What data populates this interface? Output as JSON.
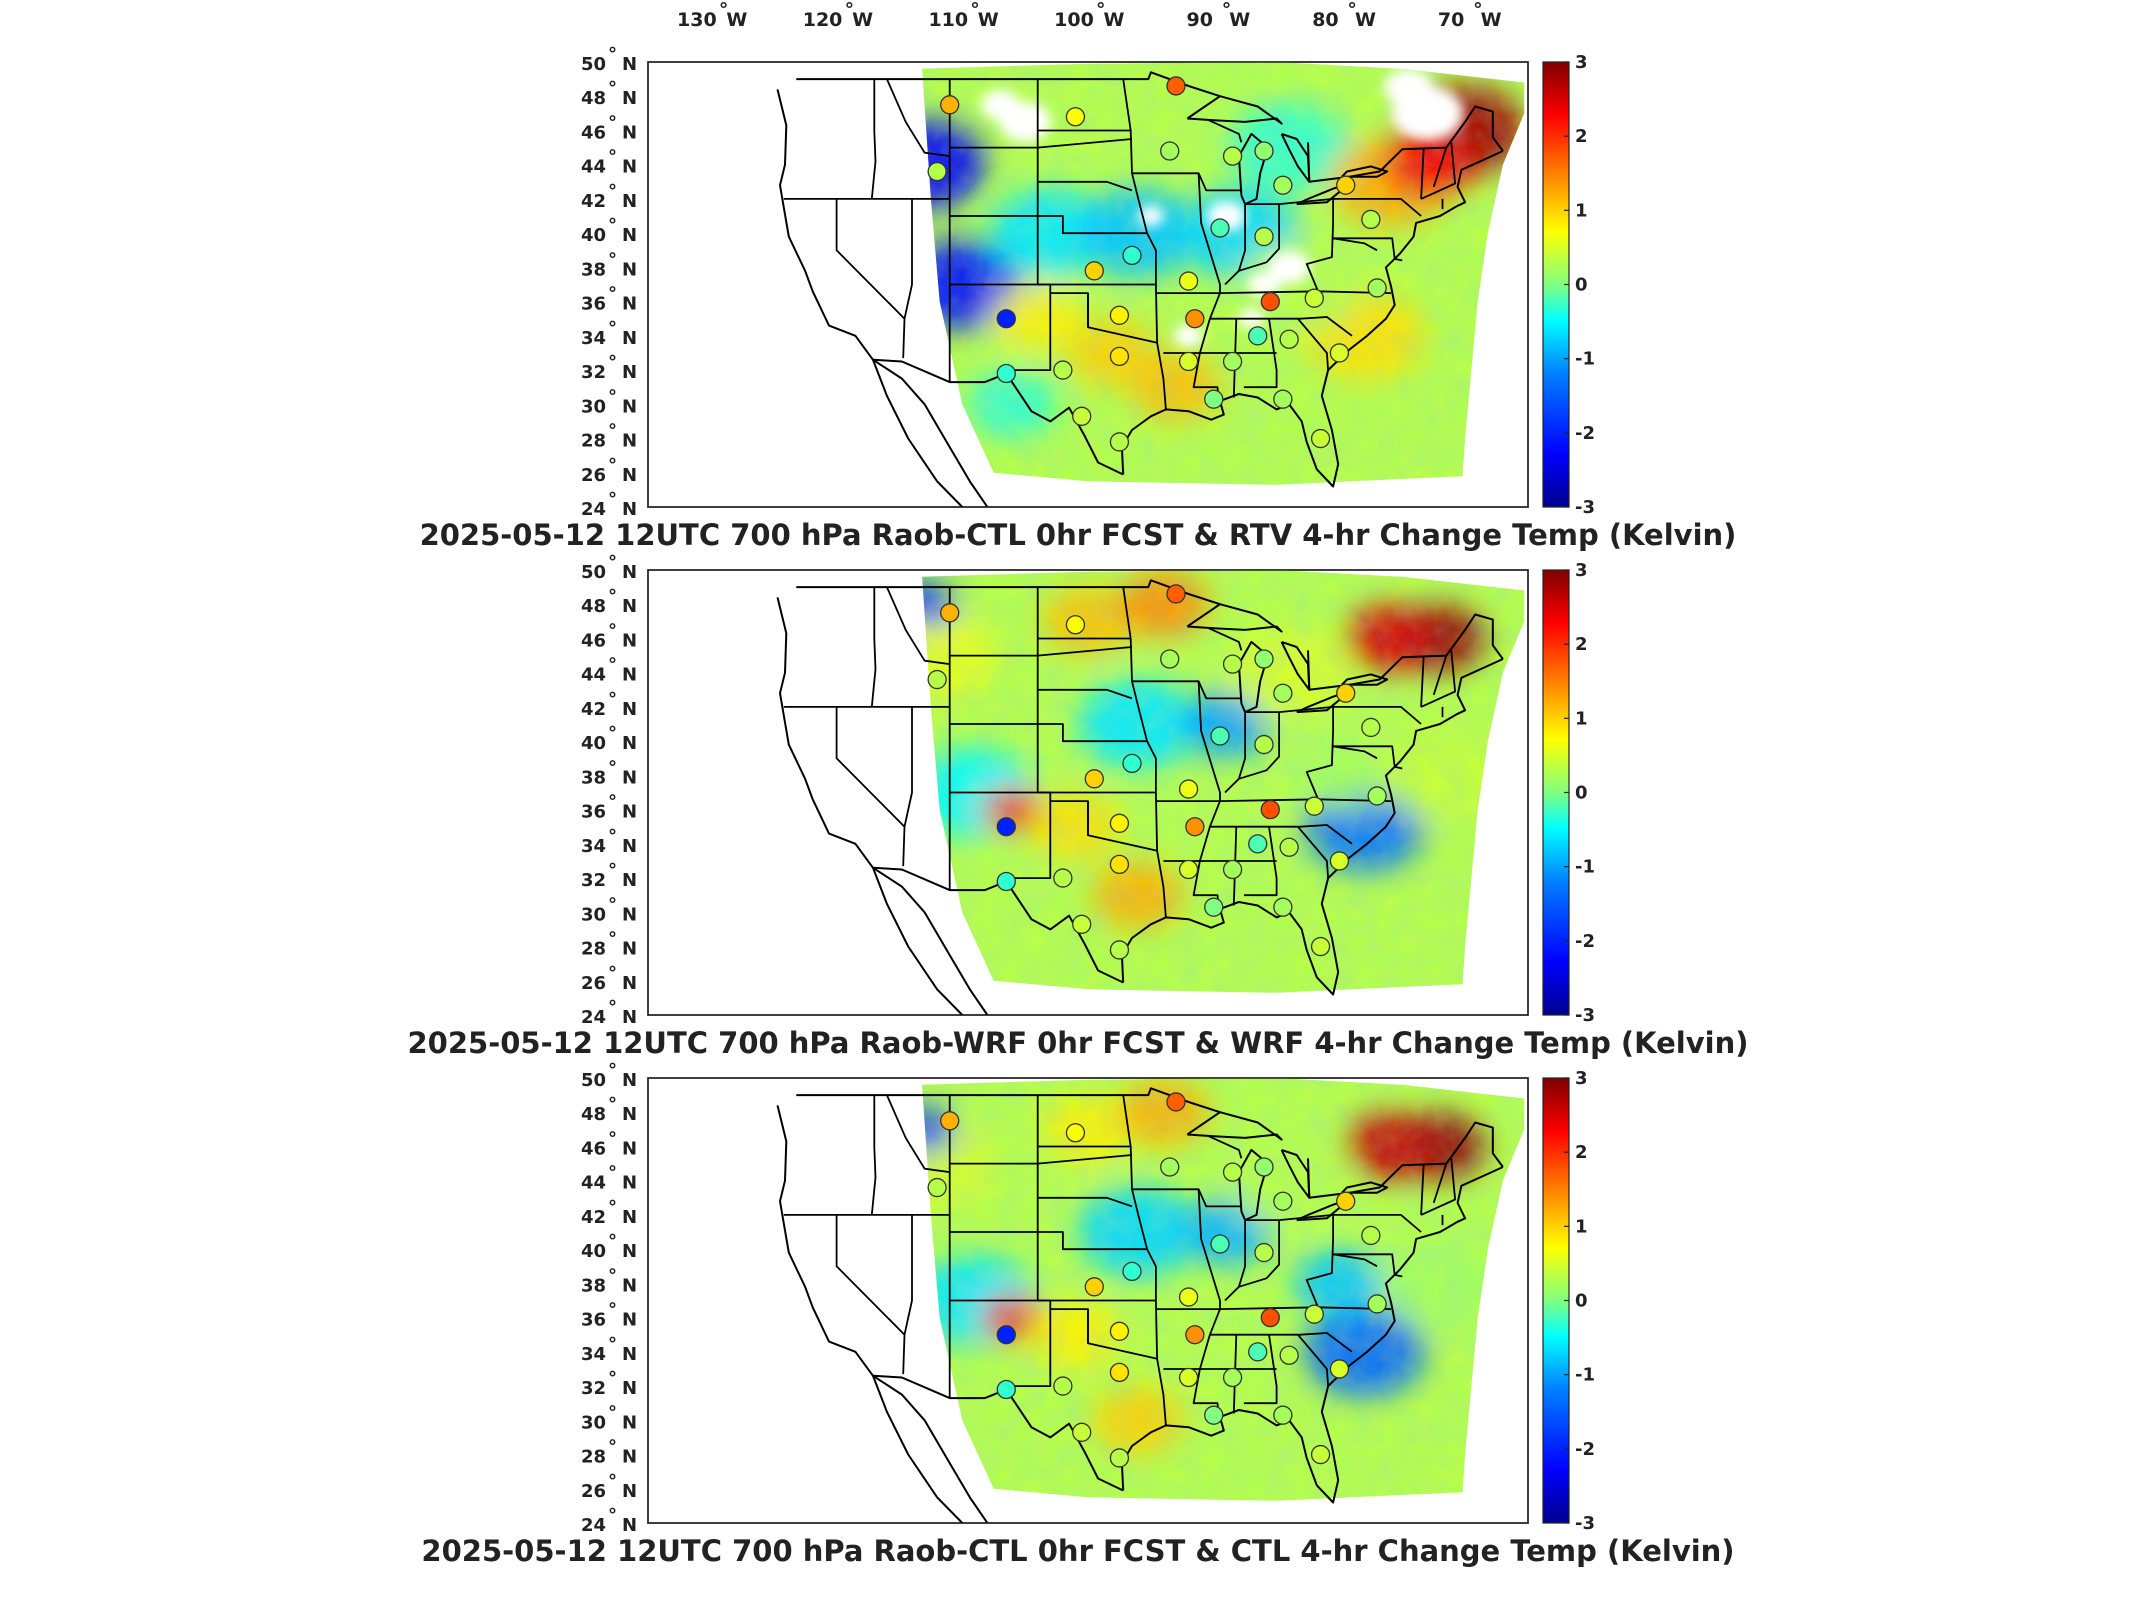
{
  "figure": {
    "lon_labels": [
      "130",
      "120",
      "110",
      "100",
      "90",
      "80",
      "70"
    ],
    "lon_suffix": "W",
    "lat_labels": [
      "50",
      "48",
      "46",
      "44",
      "42",
      "40",
      "38",
      "36",
      "34",
      "32",
      "30",
      "28",
      "26",
      "24"
    ],
    "lat_suffix": "N",
    "degree_symbol": "°",
    "colorbar_ticks": [
      "3",
      "2",
      "1",
      "0",
      "-1",
      "-2",
      "-3"
    ],
    "colorbar_range": [
      -3,
      3
    ],
    "colormap": "jet",
    "colormap_stops": [
      "#00008f",
      "#0000ff",
      "#0080ff",
      "#00ffff",
      "#80ff80",
      "#ffff00",
      "#ff8000",
      "#ff0000",
      "#800000"
    ]
  },
  "panels": [
    {
      "title": "2025-05-12 12UTC 700 hPa Raob-CTL 0hr FCST & RTV 4-hr Change Temp (Kelvin)",
      "field": "RTV 4-hr change",
      "has_data_gaps": true
    },
    {
      "title": "2025-05-12 12UTC 700 hPa Raob-WRF 0hr FCST & WRF 4-hr Change Temp (Kelvin)",
      "field": "WRF 4-hr change",
      "has_data_gaps": false
    },
    {
      "title": "2025-05-12 12UTC 700 hPa Raob-CTL 0hr FCST & CTL 4-hr Change Temp (Kelvin)",
      "field": "CTL 4-hr change",
      "has_data_gaps": false
    }
  ],
  "raob_stations": [
    {
      "lon": -111.0,
      "lat": 47.5,
      "value": 1.2
    },
    {
      "lon": -101.0,
      "lat": 46.8,
      "value": 0.7
    },
    {
      "lon": -93.0,
      "lat": 48.6,
      "value": 1.7
    },
    {
      "lon": -112.0,
      "lat": 43.6,
      "value": 0.3
    },
    {
      "lon": -93.5,
      "lat": 44.8,
      "value": 0.2
    },
    {
      "lon": -88.5,
      "lat": 44.5,
      "value": 0.3
    },
    {
      "lon": -86.0,
      "lat": 44.8,
      "value": 0.1
    },
    {
      "lon": -84.5,
      "lat": 42.8,
      "value": 0.2
    },
    {
      "lon": -79.5,
      "lat": 42.8,
      "value": 1.0
    },
    {
      "lon": -77.5,
      "lat": 40.8,
      "value": 0.3
    },
    {
      "lon": -89.5,
      "lat": 40.3,
      "value": -0.2
    },
    {
      "lon": -86.0,
      "lat": 39.8,
      "value": 0.3
    },
    {
      "lon": -96.5,
      "lat": 38.7,
      "value": -0.3
    },
    {
      "lon": -99.5,
      "lat": 37.8,
      "value": 1.0
    },
    {
      "lon": -92.0,
      "lat": 37.2,
      "value": 0.6
    },
    {
      "lon": -85.5,
      "lat": 36.0,
      "value": 1.8
    },
    {
      "lon": -82.0,
      "lat": 36.2,
      "value": 0.4
    },
    {
      "lon": -77.0,
      "lat": 36.8,
      "value": 0.2
    },
    {
      "lon": -97.5,
      "lat": 35.2,
      "value": 0.8
    },
    {
      "lon": -91.5,
      "lat": 35.0,
      "value": 1.4
    },
    {
      "lon": -106.5,
      "lat": 35.0,
      "value": -2.0
    },
    {
      "lon": -86.5,
      "lat": 34.0,
      "value": -0.2
    },
    {
      "lon": -84.0,
      "lat": 33.8,
      "value": 0.3
    },
    {
      "lon": -88.5,
      "lat": 32.5,
      "value": 0.2
    },
    {
      "lon": -92.0,
      "lat": 32.5,
      "value": 0.5
    },
    {
      "lon": -97.5,
      "lat": 32.8,
      "value": 0.9
    },
    {
      "lon": -80.0,
      "lat": 33.0,
      "value": 0.5
    },
    {
      "lon": -102.0,
      "lat": 32.0,
      "value": 0.3
    },
    {
      "lon": -106.5,
      "lat": 31.8,
      "value": -0.3
    },
    {
      "lon": -90.0,
      "lat": 30.3,
      "value": 0.0
    },
    {
      "lon": -84.5,
      "lat": 30.3,
      "value": 0.2
    },
    {
      "lon": -100.5,
      "lat": 29.3,
      "value": 0.4
    },
    {
      "lon": -97.5,
      "lat": 27.8,
      "value": 0.3
    },
    {
      "lon": -81.5,
      "lat": 28.0,
      "value": 0.4
    }
  ]
}
